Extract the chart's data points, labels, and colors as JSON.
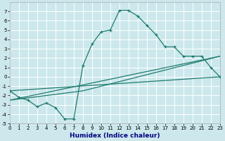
{
  "xlabel": "Humidex (Indice chaleur)",
  "background_color": "#cce8ec",
  "grid_color": "#ffffff",
  "line_color": "#1e7b6e",
  "xlim": [
    0,
    23
  ],
  "ylim": [
    -5,
    8
  ],
  "xticks": [
    0,
    1,
    2,
    3,
    4,
    5,
    6,
    7,
    8,
    9,
    10,
    11,
    12,
    13,
    14,
    15,
    16,
    17,
    18,
    19,
    20,
    21,
    22,
    23
  ],
  "yticks": [
    -5,
    -4,
    -3,
    -2,
    -1,
    0,
    1,
    2,
    3,
    4,
    5,
    6,
    7
  ],
  "series1_x": [
    0,
    1,
    2,
    3,
    4,
    5,
    6,
    7,
    8,
    9,
    10,
    11,
    12,
    13,
    14,
    15,
    16,
    17,
    18,
    19,
    20,
    21,
    22,
    23
  ],
  "series1_y": [
    -1.5,
    -2.2,
    -2.5,
    -3.2,
    -2.8,
    -3.3,
    -4.5,
    -4.5,
    1.2,
    3.5,
    4.8,
    5.0,
    7.1,
    7.1,
    6.5,
    5.5,
    4.5,
    3.2,
    3.2,
    2.2,
    2.2,
    2.2,
    1.0,
    0.0
  ],
  "series2_x": [
    0,
    23
  ],
  "series2_y": [
    -1.5,
    0.0
  ],
  "series3_x": [
    0,
    8,
    23
  ],
  "series3_y": [
    -2.5,
    -1.5,
    2.2
  ],
  "series4_x": [
    0,
    23
  ],
  "series4_y": [
    -2.5,
    2.2
  ],
  "xlabel_fontsize": 6.5,
  "xlabel_color": "#000080",
  "tick_fontsize": 5.0
}
